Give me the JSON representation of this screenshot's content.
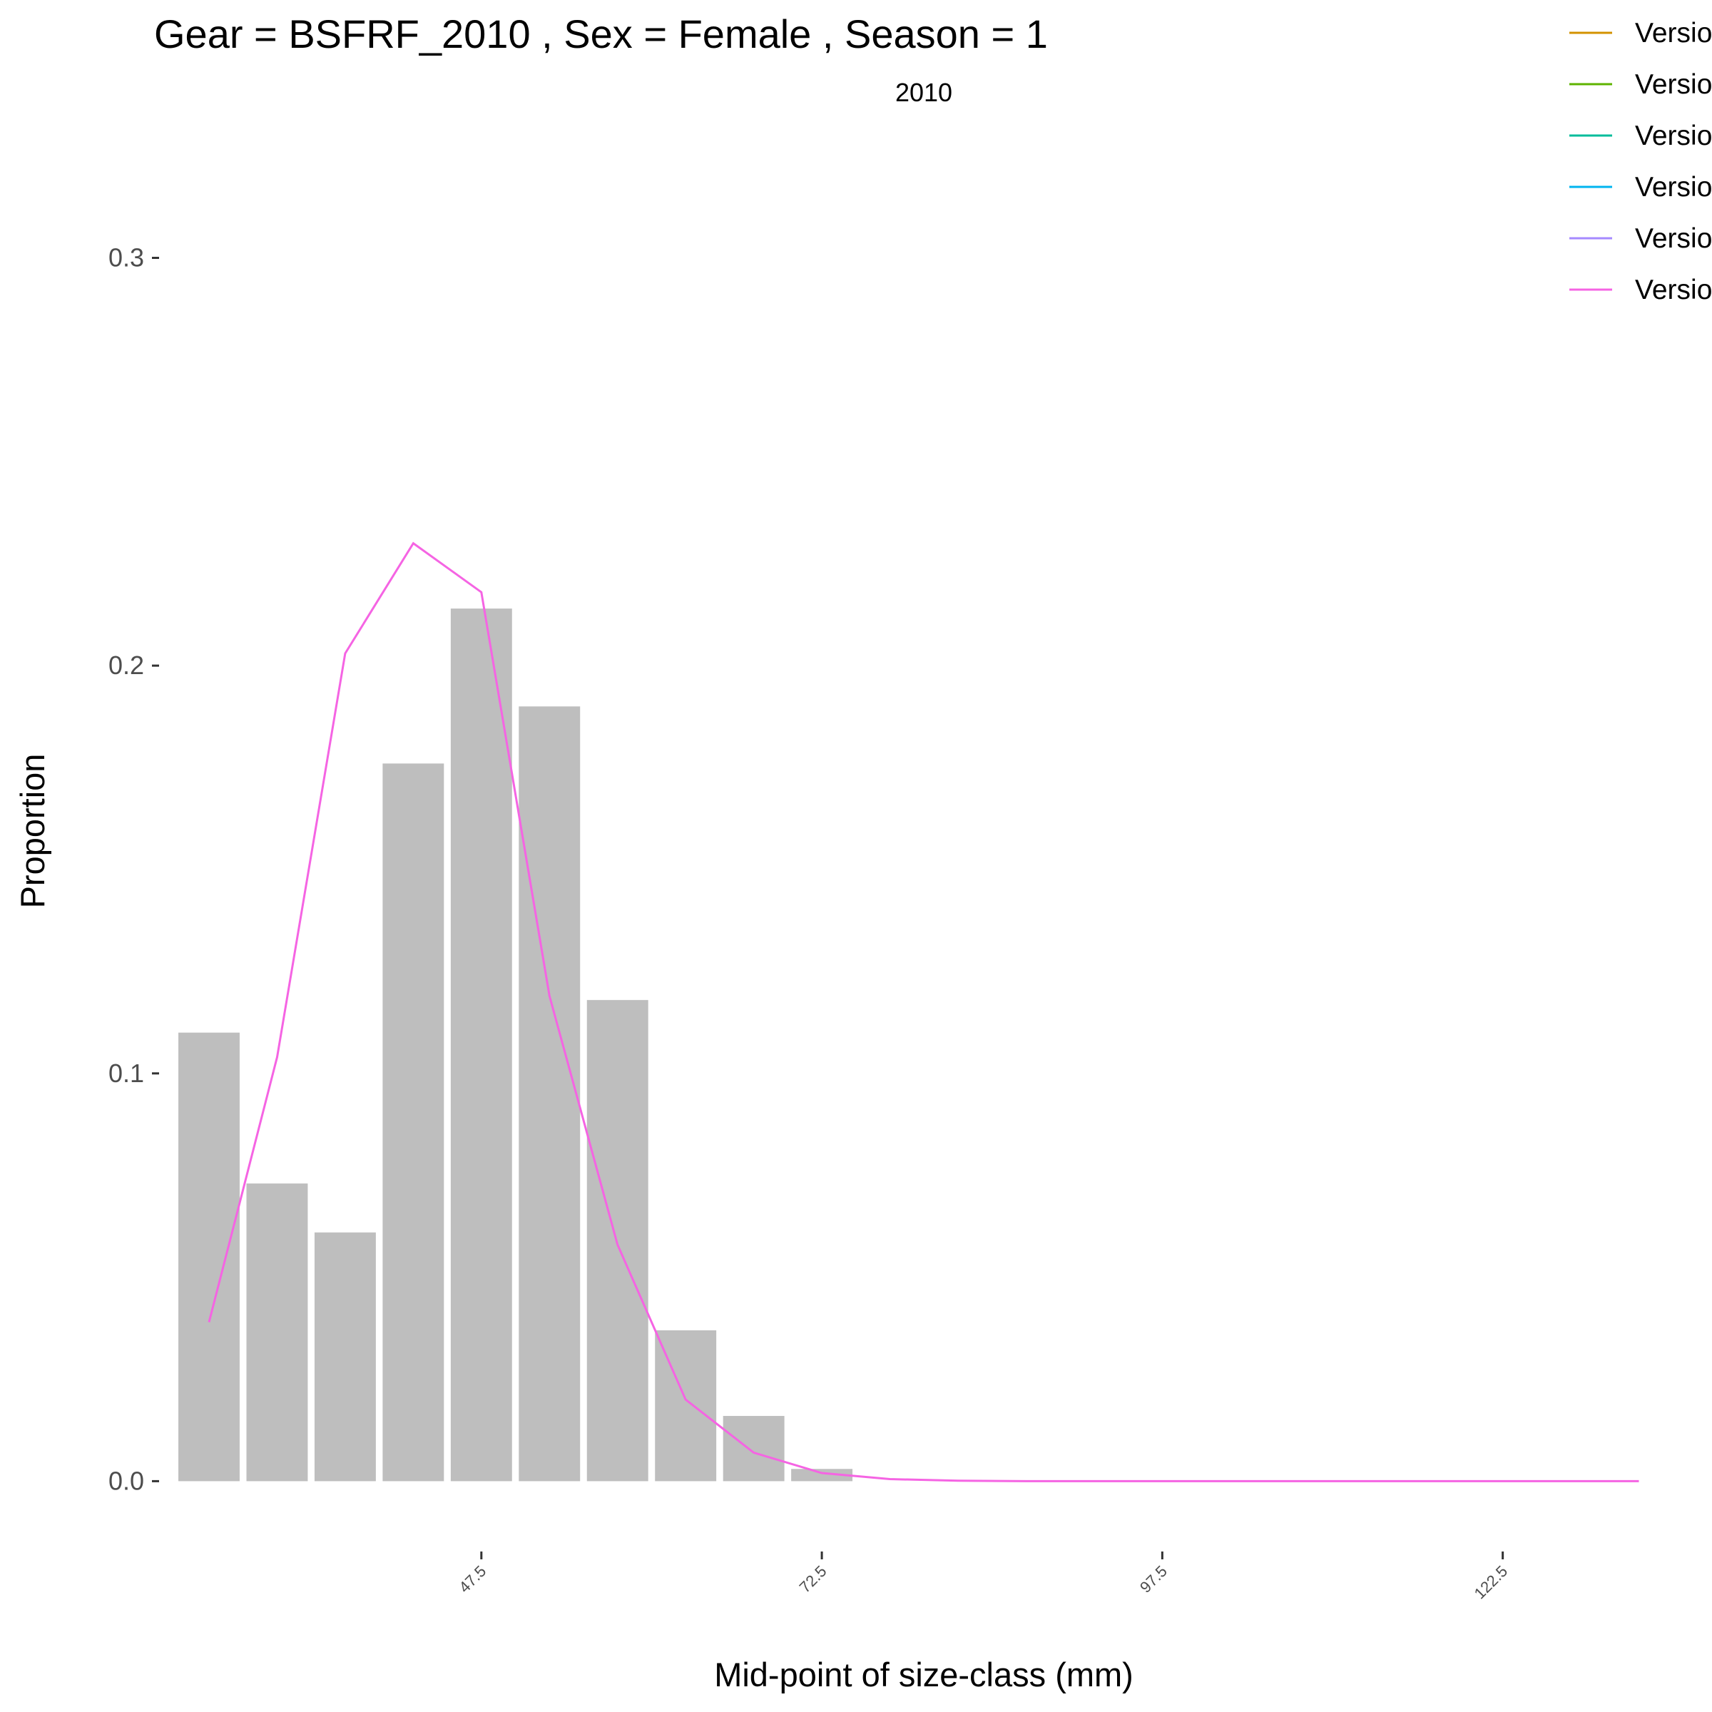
{
  "chart_data": {
    "type": "bar",
    "title": "Gear = BSFRF_2010 , Sex = Female , Season = 1",
    "subtitle": "2010",
    "xlabel": "Mid-point of size-class (mm)",
    "ylabel": "Proportion",
    "xlim": [
      24.2,
      134.2
    ],
    "ylim": [
      -0.012,
      0.337
    ],
    "y_ticks": [
      0.0,
      0.1,
      0.2,
      0.3
    ],
    "y_tick_labels": [
      "0.0",
      "0.1",
      "0.2",
      "0.3"
    ],
    "x_ticks": [
      47.5,
      72.5,
      97.5,
      122.5
    ],
    "x_tick_labels": [
      "47.5",
      "72.5",
      "97.5",
      "122.5"
    ],
    "bar_color": "#bebebe",
    "bars": {
      "x": [
        27.5,
        32.5,
        37.5,
        42.5,
        47.5,
        52.5,
        57.5,
        62.5,
        67.5,
        72.5
      ],
      "values": [
        0.11,
        0.073,
        0.061,
        0.176,
        0.214,
        0.19,
        0.118,
        0.037,
        0.016,
        0.003
      ],
      "width": 4.5
    },
    "series": [
      {
        "name": "Versio",
        "color": "#d39200",
        "x": [],
        "values": []
      },
      {
        "name": "Versio",
        "color": "#5eb300",
        "x": [],
        "values": []
      },
      {
        "name": "Versio",
        "color": "#00bc9b",
        "x": [],
        "values": []
      },
      {
        "name": "Versio",
        "color": "#00b4ef",
        "x": [],
        "values": []
      },
      {
        "name": "Versio",
        "color": "#a58aff",
        "x": [],
        "values": []
      },
      {
        "name": "Versio",
        "color": "#f564e3",
        "x": [
          27.5,
          32.5,
          37.5,
          42.5,
          47.5,
          52.5,
          57.5,
          62.5,
          67.5,
          72.5,
          77.5,
          82.5,
          87.5,
          92.5,
          97.5,
          102.5,
          107.5,
          112.5,
          117.5,
          122.5,
          127.5,
          132.5
        ],
        "values": [
          0.039,
          0.104,
          0.203,
          0.23,
          0.218,
          0.119,
          0.058,
          0.02,
          0.007,
          0.002,
          0.0005,
          0.0001,
          0,
          0,
          0,
          0,
          0,
          0,
          0,
          0,
          0,
          0
        ]
      }
    ],
    "grid": false,
    "legend_position": "top-right"
  }
}
